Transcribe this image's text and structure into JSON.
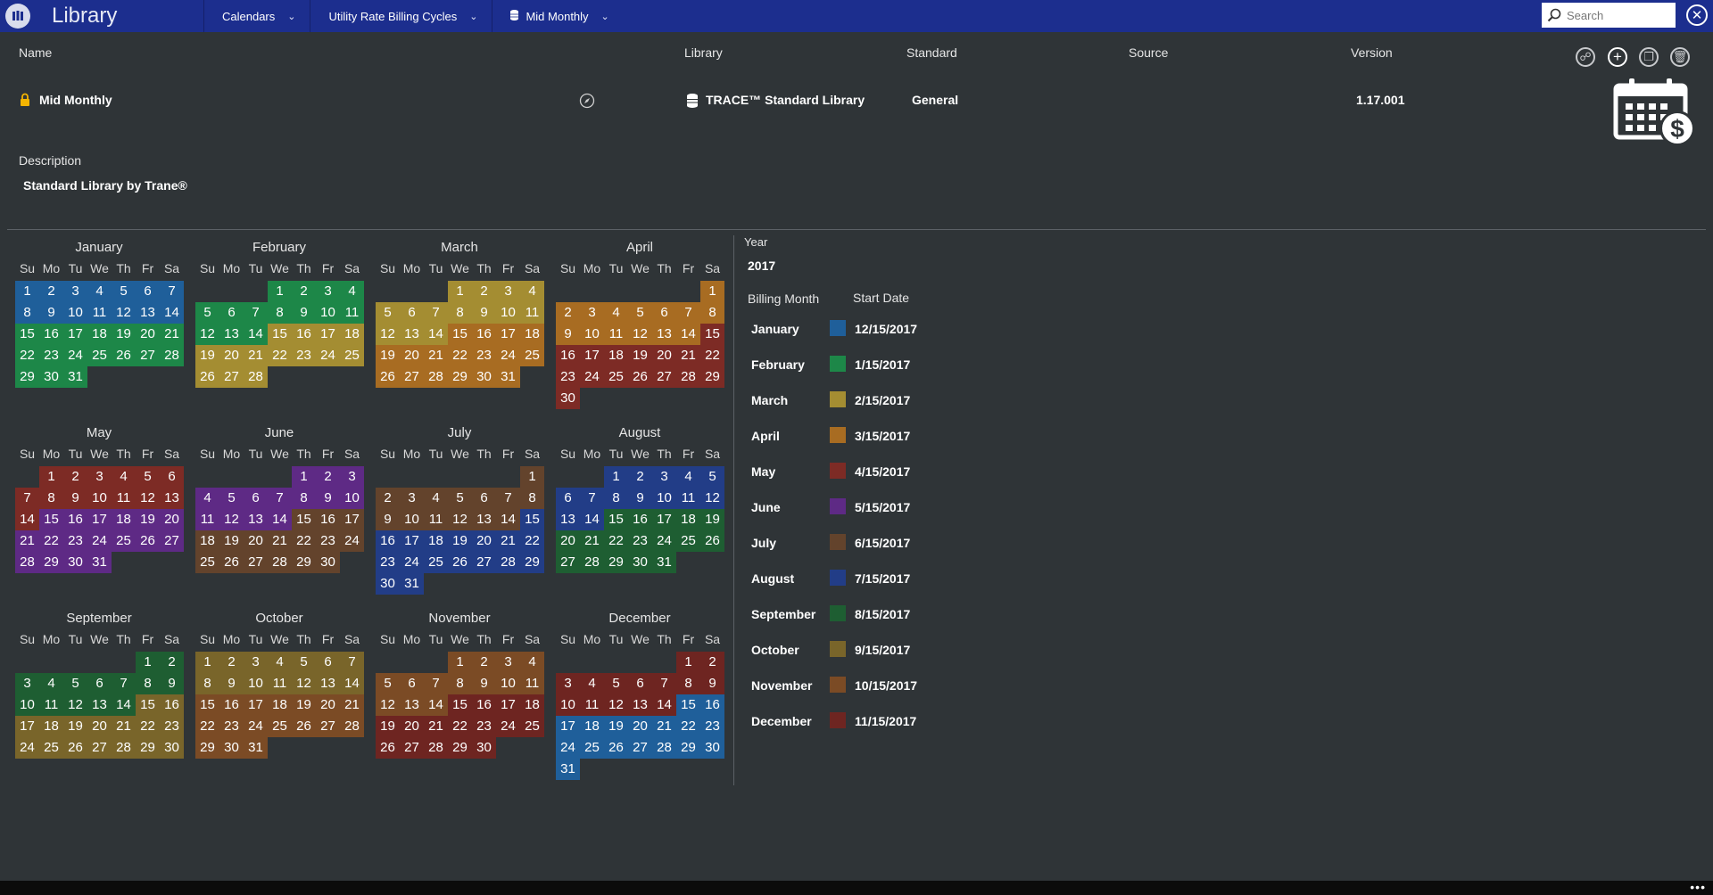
{
  "app": {
    "title": "Library",
    "icon": "library-books-icon"
  },
  "breadcrumbs": [
    {
      "label": "Calendars"
    },
    {
      "label": "Utility Rate Billing Cycles"
    },
    {
      "label": "Mid Monthly",
      "icon": "database-icon"
    }
  ],
  "search": {
    "placeholder": "Search"
  },
  "columns": {
    "name": "Name",
    "library": "Library",
    "standard": "Standard",
    "source": "Source",
    "version": "Version"
  },
  "record": {
    "name": "Mid Monthly",
    "library": "TRACE™ Standard Library",
    "standard": "General",
    "source": "",
    "version": "1.17.001"
  },
  "description": {
    "label": "Description",
    "value": "Standard Library by Trane®"
  },
  "billing": {
    "year_label": "Year",
    "year": "2017",
    "month_header": "Billing Month",
    "start_header": "Start Date"
  },
  "weekdays": [
    "Su",
    "Mo",
    "Tu",
    "We",
    "Th",
    "Fr",
    "Sa"
  ],
  "palette": {
    "jan": "#1f5f9a",
    "feb": "#1d8748",
    "mar": "#a48d32",
    "apr": "#a86c22",
    "may": "#7d2b25",
    "jun": "#5e2a85",
    "jul": "#63432c",
    "aug": "#223d87",
    "sep": "#1e5e32",
    "oct": "#79652a",
    "nov": "#7b4b25",
    "dec": "#6e2521"
  },
  "legend": [
    {
      "month": "January",
      "color_key": "jan",
      "date": "12/15/2017"
    },
    {
      "month": "February",
      "color_key": "feb",
      "date": "1/15/2017"
    },
    {
      "month": "March",
      "color_key": "mar",
      "date": "2/15/2017"
    },
    {
      "month": "April",
      "color_key": "apr",
      "date": "3/15/2017"
    },
    {
      "month": "May",
      "color_key": "may",
      "date": "4/15/2017"
    },
    {
      "month": "June",
      "color_key": "jun",
      "date": "5/15/2017"
    },
    {
      "month": "July",
      "color_key": "jul",
      "date": "6/15/2017"
    },
    {
      "month": "August",
      "color_key": "aug",
      "date": "7/15/2017"
    },
    {
      "month": "September",
      "color_key": "sep",
      "date": "8/15/2017"
    },
    {
      "month": "October",
      "color_key": "oct",
      "date": "9/15/2017"
    },
    {
      "month": "November",
      "color_key": "nov",
      "date": "10/15/2017"
    },
    {
      "month": "December",
      "color_key": "dec",
      "date": "11/15/2017"
    }
  ],
  "months": [
    {
      "name": "January",
      "first_weekday": 0,
      "days": 31,
      "before": "jan",
      "after": "feb"
    },
    {
      "name": "February",
      "first_weekday": 3,
      "days": 28,
      "before": "feb",
      "after": "mar"
    },
    {
      "name": "March",
      "first_weekday": 3,
      "days": 31,
      "before": "mar",
      "after": "apr"
    },
    {
      "name": "April",
      "first_weekday": 6,
      "days": 30,
      "before": "apr",
      "after": "may"
    },
    {
      "name": "May",
      "first_weekday": 1,
      "days": 31,
      "before": "may",
      "after": "jun"
    },
    {
      "name": "June",
      "first_weekday": 4,
      "days": 30,
      "before": "jun",
      "after": "jul"
    },
    {
      "name": "July",
      "first_weekday": 6,
      "days": 31,
      "before": "jul",
      "after": "aug"
    },
    {
      "name": "August",
      "first_weekday": 2,
      "days": 31,
      "before": "aug",
      "after": "sep"
    },
    {
      "name": "September",
      "first_weekday": 5,
      "days": 30,
      "before": "sep",
      "after": "oct"
    },
    {
      "name": "October",
      "first_weekday": 0,
      "days": 31,
      "before": "oct",
      "after": "nov"
    },
    {
      "name": "November",
      "first_weekday": 3,
      "days": 30,
      "before": "nov",
      "after": "dec"
    },
    {
      "name": "December",
      "first_weekday": 5,
      "days": 31,
      "before": "dec",
      "after": "jan"
    }
  ],
  "cycle_start_day": 15
}
